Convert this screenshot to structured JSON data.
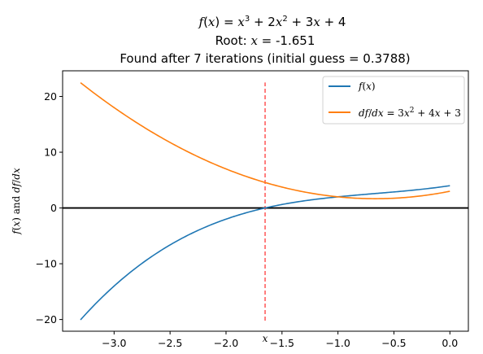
{
  "chart_data": {
    "type": "line",
    "title_lines": [
      "f(x) = x³ + 2x² + 3x + 4",
      "Root: x = -1.651",
      "Found after 7 iterations (initial guess = 0.3788)"
    ],
    "xlabel": "x",
    "ylabel": "f(x) and df/dx",
    "xlim": [
      -3.46,
      0.165
    ],
    "ylim": [
      -22.1,
      24.6
    ],
    "xticks": [
      -3.0,
      -2.5,
      -2.0,
      -1.5,
      -1.0,
      -0.5,
      0.0
    ],
    "xtick_labels": [
      "−3.0",
      "−2.5",
      "−2.0",
      "−1.5",
      "−1.0",
      "−0.5",
      "0.0"
    ],
    "yticks": [
      -20,
      -10,
      0,
      10,
      20
    ],
    "ytick_labels": [
      "−20",
      "−10",
      "0",
      "10",
      "20"
    ],
    "x_range": [
      -3.3,
      0.0
    ],
    "series": [
      {
        "name": "f(x)",
        "color": "#1f77b4",
        "coefficients": [
          1,
          2,
          3,
          4
        ]
      },
      {
        "name": "df/dx = 3x² + 4x + 3",
        "color": "#ff7f0e",
        "coefficients": [
          0,
          3,
          4,
          3
        ]
      }
    ],
    "zero_line": {
      "y": 0,
      "color": "#000000"
    },
    "root_line": {
      "x": -1.651,
      "y_range": [
        -20.2,
        22.5
      ],
      "color": "#ff0000",
      "style": "dashed"
    },
    "legend_placement": "top-right",
    "grid": false
  }
}
